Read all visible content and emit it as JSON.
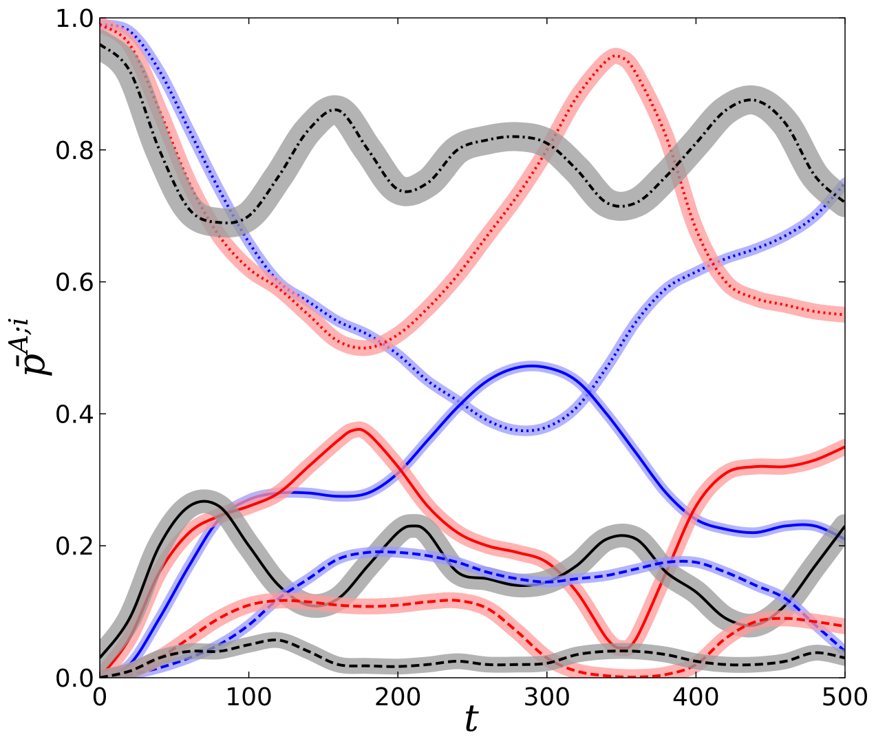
{
  "chart_data": {
    "type": "line",
    "title": "",
    "xlabel": "t",
    "ylabel_base": "p̄",
    "ylabel_sup": "A;i",
    "xlim": [
      0,
      500
    ],
    "ylim": [
      0,
      1
    ],
    "xticks": [
      0,
      100,
      200,
      300,
      400,
      500
    ],
    "xtick_labels": [
      "0",
      "100",
      "200",
      "300",
      "400",
      "500"
    ],
    "yticks": [
      0,
      0.2,
      0.4,
      0.6,
      0.8,
      1.0
    ],
    "ytick_labels": [
      "0.0",
      "0.2",
      "0.4",
      "0.6",
      "0.8",
      "1.0"
    ],
    "grid": false,
    "legend": "none",
    "series": [
      {
        "color": "#0000ff",
        "band": "#9999ff",
        "style": "dotted",
        "bandwidth": 0.008,
        "x": [
          0,
          20,
          40,
          60,
          80,
          100,
          120,
          140,
          160,
          180,
          200,
          220,
          240,
          260,
          280,
          300,
          320,
          340,
          360,
          380,
          400,
          420,
          440,
          460,
          480,
          500
        ],
        "y": [
          0.99,
          0.98,
          0.92,
          0.83,
          0.74,
          0.66,
          0.6,
          0.57,
          0.54,
          0.52,
          0.49,
          0.45,
          0.42,
          0.39,
          0.375,
          0.38,
          0.41,
          0.47,
          0.54,
          0.59,
          0.615,
          0.635,
          0.65,
          0.67,
          0.7,
          0.75
        ]
      },
      {
        "color": "#ff0000",
        "band": "#ff9999",
        "style": "dotted",
        "bandwidth": 0.012,
        "x": [
          0,
          20,
          40,
          60,
          80,
          100,
          120,
          140,
          160,
          180,
          200,
          220,
          240,
          260,
          280,
          300,
          320,
          340,
          350,
          360,
          380,
          400,
          420,
          440,
          460,
          480,
          500
        ],
        "y": [
          0.99,
          0.96,
          0.86,
          0.75,
          0.67,
          0.62,
          0.59,
          0.55,
          0.51,
          0.5,
          0.52,
          0.56,
          0.61,
          0.67,
          0.73,
          0.8,
          0.88,
          0.935,
          0.94,
          0.915,
          0.82,
          0.68,
          0.6,
          0.575,
          0.565,
          0.555,
          0.55
        ]
      },
      {
        "color": "#000000",
        "band": "#999999",
        "style": "dashdot",
        "bandwidth": 0.022,
        "x": [
          0,
          20,
          40,
          60,
          80,
          100,
          120,
          140,
          160,
          180,
          200,
          220,
          240,
          260,
          280,
          300,
          320,
          340,
          360,
          380,
          400,
          420,
          440,
          460,
          480,
          500
        ],
        "y": [
          0.96,
          0.92,
          0.8,
          0.71,
          0.69,
          0.7,
          0.76,
          0.83,
          0.86,
          0.8,
          0.74,
          0.75,
          0.8,
          0.815,
          0.82,
          0.81,
          0.77,
          0.72,
          0.72,
          0.76,
          0.81,
          0.86,
          0.875,
          0.84,
          0.76,
          0.72
        ]
      },
      {
        "color": "#0000ff",
        "band": "#9999ff",
        "style": "solid",
        "bandwidth": 0.008,
        "x": [
          0,
          20,
          40,
          60,
          80,
          100,
          120,
          140,
          160,
          180,
          200,
          220,
          240,
          260,
          280,
          300,
          320,
          340,
          360,
          380,
          400,
          420,
          440,
          460,
          480,
          500
        ],
        "y": [
          0.0,
          0.02,
          0.09,
          0.17,
          0.24,
          0.27,
          0.28,
          0.28,
          0.275,
          0.28,
          0.31,
          0.36,
          0.41,
          0.45,
          0.47,
          0.47,
          0.45,
          0.4,
          0.34,
          0.28,
          0.24,
          0.225,
          0.22,
          0.23,
          0.23,
          0.21
        ]
      },
      {
        "color": "#ff0000",
        "band": "#ff9999",
        "style": "solid",
        "bandwidth": 0.012,
        "x": [
          0,
          20,
          40,
          60,
          80,
          100,
          120,
          140,
          160,
          170,
          180,
          200,
          220,
          240,
          260,
          280,
          300,
          320,
          340,
          350,
          360,
          380,
          400,
          420,
          440,
          460,
          480,
          500
        ],
        "y": [
          0.0,
          0.06,
          0.16,
          0.22,
          0.245,
          0.26,
          0.28,
          0.32,
          0.36,
          0.375,
          0.37,
          0.32,
          0.26,
          0.22,
          0.2,
          0.19,
          0.175,
          0.13,
          0.06,
          0.045,
          0.06,
          0.16,
          0.26,
          0.31,
          0.32,
          0.32,
          0.33,
          0.35
        ]
      },
      {
        "color": "#000000",
        "band": "#999999",
        "style": "solid",
        "bandwidth": 0.018,
        "x": [
          0,
          20,
          40,
          60,
          80,
          100,
          120,
          140,
          160,
          180,
          200,
          210,
          220,
          240,
          260,
          280,
          300,
          320,
          340,
          360,
          380,
          400,
          420,
          440,
          460,
          480,
          500
        ],
        "y": [
          0.03,
          0.09,
          0.2,
          0.26,
          0.26,
          0.2,
          0.14,
          0.11,
          0.12,
          0.17,
          0.22,
          0.23,
          0.22,
          0.16,
          0.15,
          0.14,
          0.145,
          0.17,
          0.21,
          0.21,
          0.16,
          0.13,
          0.09,
          0.08,
          0.11,
          0.17,
          0.23
        ]
      },
      {
        "color": "#0000ff",
        "band": "#9999ff",
        "style": "dashed",
        "bandwidth": 0.008,
        "x": [
          0,
          20,
          40,
          60,
          80,
          100,
          120,
          140,
          160,
          180,
          200,
          220,
          240,
          260,
          280,
          300,
          320,
          340,
          360,
          380,
          400,
          420,
          440,
          460,
          480,
          500
        ],
        "y": [
          0.0,
          0.005,
          0.015,
          0.03,
          0.05,
          0.08,
          0.12,
          0.15,
          0.18,
          0.19,
          0.19,
          0.185,
          0.175,
          0.16,
          0.15,
          0.145,
          0.15,
          0.155,
          0.165,
          0.175,
          0.175,
          0.16,
          0.14,
          0.12,
          0.08,
          0.04
        ]
      },
      {
        "color": "#ff0000",
        "band": "#ff9999",
        "style": "dashed",
        "bandwidth": 0.012,
        "x": [
          0,
          20,
          40,
          60,
          80,
          100,
          120,
          140,
          160,
          180,
          200,
          220,
          240,
          260,
          280,
          300,
          320,
          340,
          360,
          380,
          400,
          420,
          440,
          460,
          480,
          500
        ],
        "y": [
          0.0,
          0.01,
          0.03,
          0.06,
          0.09,
          0.11,
          0.117,
          0.115,
          0.11,
          0.108,
          0.11,
          0.115,
          0.117,
          0.105,
          0.07,
          0.03,
          0.01,
          0.003,
          0.001,
          0.005,
          0.02,
          0.06,
          0.085,
          0.09,
          0.085,
          0.078
        ]
      },
      {
        "color": "#000000",
        "band": "#999999",
        "style": "dashed",
        "bandwidth": 0.012,
        "x": [
          0,
          20,
          40,
          60,
          80,
          100,
          120,
          140,
          160,
          180,
          200,
          220,
          240,
          260,
          280,
          300,
          320,
          340,
          360,
          380,
          400,
          420,
          440,
          460,
          480,
          500
        ],
        "y": [
          0.0,
          0.01,
          0.03,
          0.04,
          0.04,
          0.05,
          0.057,
          0.04,
          0.02,
          0.018,
          0.017,
          0.02,
          0.025,
          0.02,
          0.02,
          0.022,
          0.035,
          0.04,
          0.04,
          0.035,
          0.025,
          0.02,
          0.02,
          0.025,
          0.038,
          0.03
        ]
      }
    ]
  }
}
